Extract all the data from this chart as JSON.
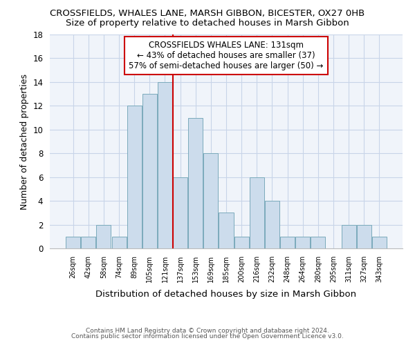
{
  "title": "CROSSFIELDS, WHALES LANE, MARSH GIBBON, BICESTER, OX27 0HB",
  "subtitle": "Size of property relative to detached houses in Marsh Gibbon",
  "xlabel": "Distribution of detached houses by size in Marsh Gibbon",
  "ylabel": "Number of detached properties",
  "categories": [
    "26sqm",
    "42sqm",
    "58sqm",
    "74sqm",
    "89sqm",
    "105sqm",
    "121sqm",
    "137sqm",
    "153sqm",
    "169sqm",
    "185sqm",
    "200sqm",
    "216sqm",
    "232sqm",
    "248sqm",
    "264sqm",
    "280sqm",
    "295sqm",
    "311sqm",
    "327sqm",
    "343sqm"
  ],
  "values": [
    1,
    1,
    2,
    1,
    12,
    13,
    14,
    6,
    11,
    8,
    3,
    1,
    6,
    4,
    1,
    1,
    1,
    0,
    2,
    2,
    1
  ],
  "bar_color": "#ccdcec",
  "bar_edge_color": "#7aaabb",
  "vline_x": 6.5,
  "vline_color": "#cc0000",
  "ylim": [
    0,
    18
  ],
  "yticks": [
    0,
    2,
    4,
    6,
    8,
    10,
    12,
    14,
    16,
    18
  ],
  "bg_color": "#ffffff",
  "plot_bg_color": "#f0f4fa",
  "grid_color": "#c8d4e8",
  "annotation_title": "CROSSFIELDS WHALES LANE: 131sqm",
  "annotation_line2": "← 43% of detached houses are smaller (37)",
  "annotation_line3": "57% of semi-detached houses are larger (50) →",
  "annotation_box_color": "#cc0000",
  "footer_line1": "Contains HM Land Registry data © Crown copyright and database right 2024.",
  "footer_line2": "Contains public sector information licensed under the Open Government Licence v3.0.",
  "title_fontsize": 9.5,
  "subtitle_fontsize": 9.5,
  "xlabel_fontsize": 9.5,
  "ylabel_fontsize": 9,
  "ann_fontsize": 8.5
}
